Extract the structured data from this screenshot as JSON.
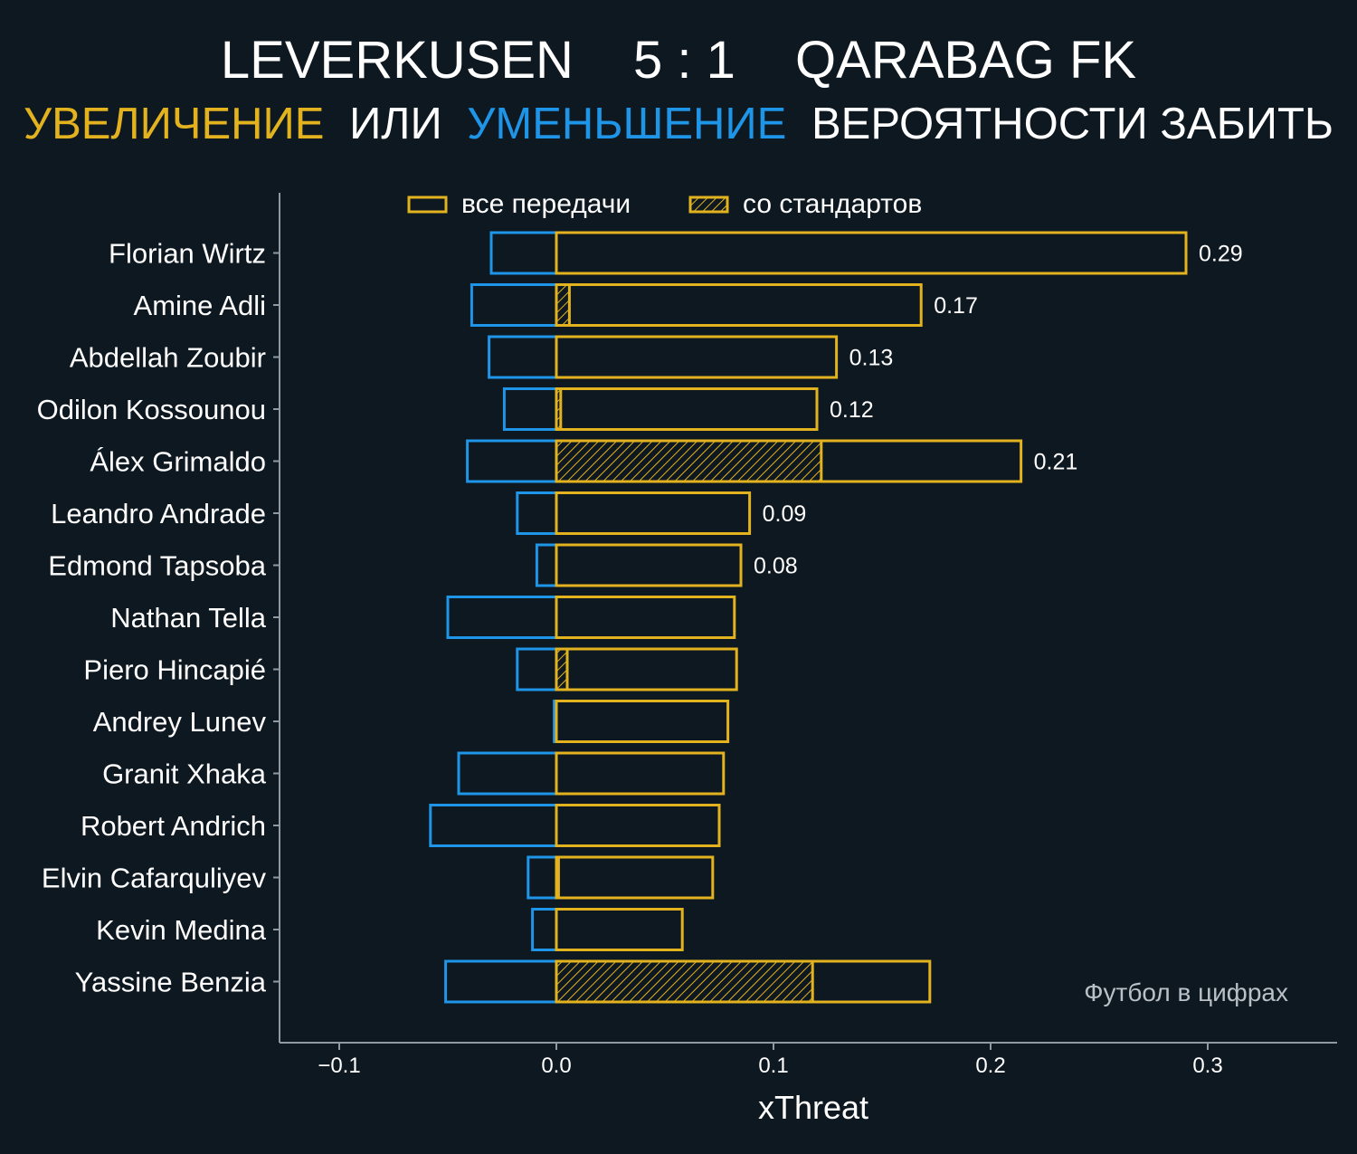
{
  "header": {
    "home_team": "LEVERKUSEN",
    "score": "5 : 1",
    "away_team": "QARABAG FK",
    "subtitle_increase": "УВЕЛИЧЕНИЕ",
    "subtitle_or": "ИЛИ",
    "subtitle_decrease": "УМЕНЬШЕНИЕ",
    "subtitle_rest": "ВЕРОЯТНОСТИ ЗАБИТЬ"
  },
  "colors": {
    "background": "#0e1821",
    "increase": "#e3b21f",
    "decrease": "#1f95e8",
    "axis": "#8e9aa3",
    "text": "#ffffff",
    "watermark": "#b9c0c6"
  },
  "watermark": "Футбол в цифрах",
  "chart_data": {
    "type": "bar",
    "orientation": "horizontal",
    "xlabel": "xThreat",
    "xlim": [
      -0.13,
      0.36
    ],
    "xticks": [
      -0.1,
      0.0,
      0.1,
      0.2,
      0.3
    ],
    "xtick_labels": [
      "−0.1",
      "0.0",
      "0.1",
      "0.2",
      "0.3"
    ],
    "legend": {
      "placement": "top",
      "entries": [
        "все передачи",
        "со стандартов"
      ]
    },
    "categories": [
      "Florian Wirtz",
      "Amine Adli",
      "Abdellah Zoubir",
      "Odilon Kossounou",
      "Álex Grimaldo",
      "Leandro Andrade",
      "Edmond Tapsoba",
      "Nathan Tella",
      "Piero Hincapié",
      "Andrey Lunev",
      "Granit Xhaka",
      "Robert Andrich",
      "Elvin Cafarquliyev",
      "Kevin Medina",
      "Yassine Benzia"
    ],
    "series": [
      {
        "name": "все передачи",
        "role": "increase",
        "values": [
          0.29,
          0.168,
          0.129,
          0.12,
          0.214,
          0.089,
          0.085,
          0.082,
          0.083,
          0.079,
          0.077,
          0.075,
          0.072,
          0.058,
          0.172
        ]
      },
      {
        "name": "со стандартов",
        "role": "increase_set_pieces",
        "values": [
          0,
          0.006,
          0,
          0.002,
          0.122,
          0,
          0,
          0,
          0.005,
          0,
          0,
          0,
          0.001,
          0,
          0.118
        ]
      },
      {
        "role": "decrease",
        "values": [
          -0.03,
          -0.039,
          -0.031,
          -0.024,
          -0.041,
          -0.018,
          -0.009,
          -0.05,
          -0.018,
          -0.001,
          -0.045,
          -0.058,
          -0.013,
          -0.011,
          -0.051
        ]
      }
    ],
    "data_labels": [
      "0.29",
      "0.17",
      "0.13",
      "0.12",
      "0.21",
      "0.09",
      "0.08",
      "",
      "",
      "",
      "",
      "",
      "",
      "",
      ""
    ]
  }
}
